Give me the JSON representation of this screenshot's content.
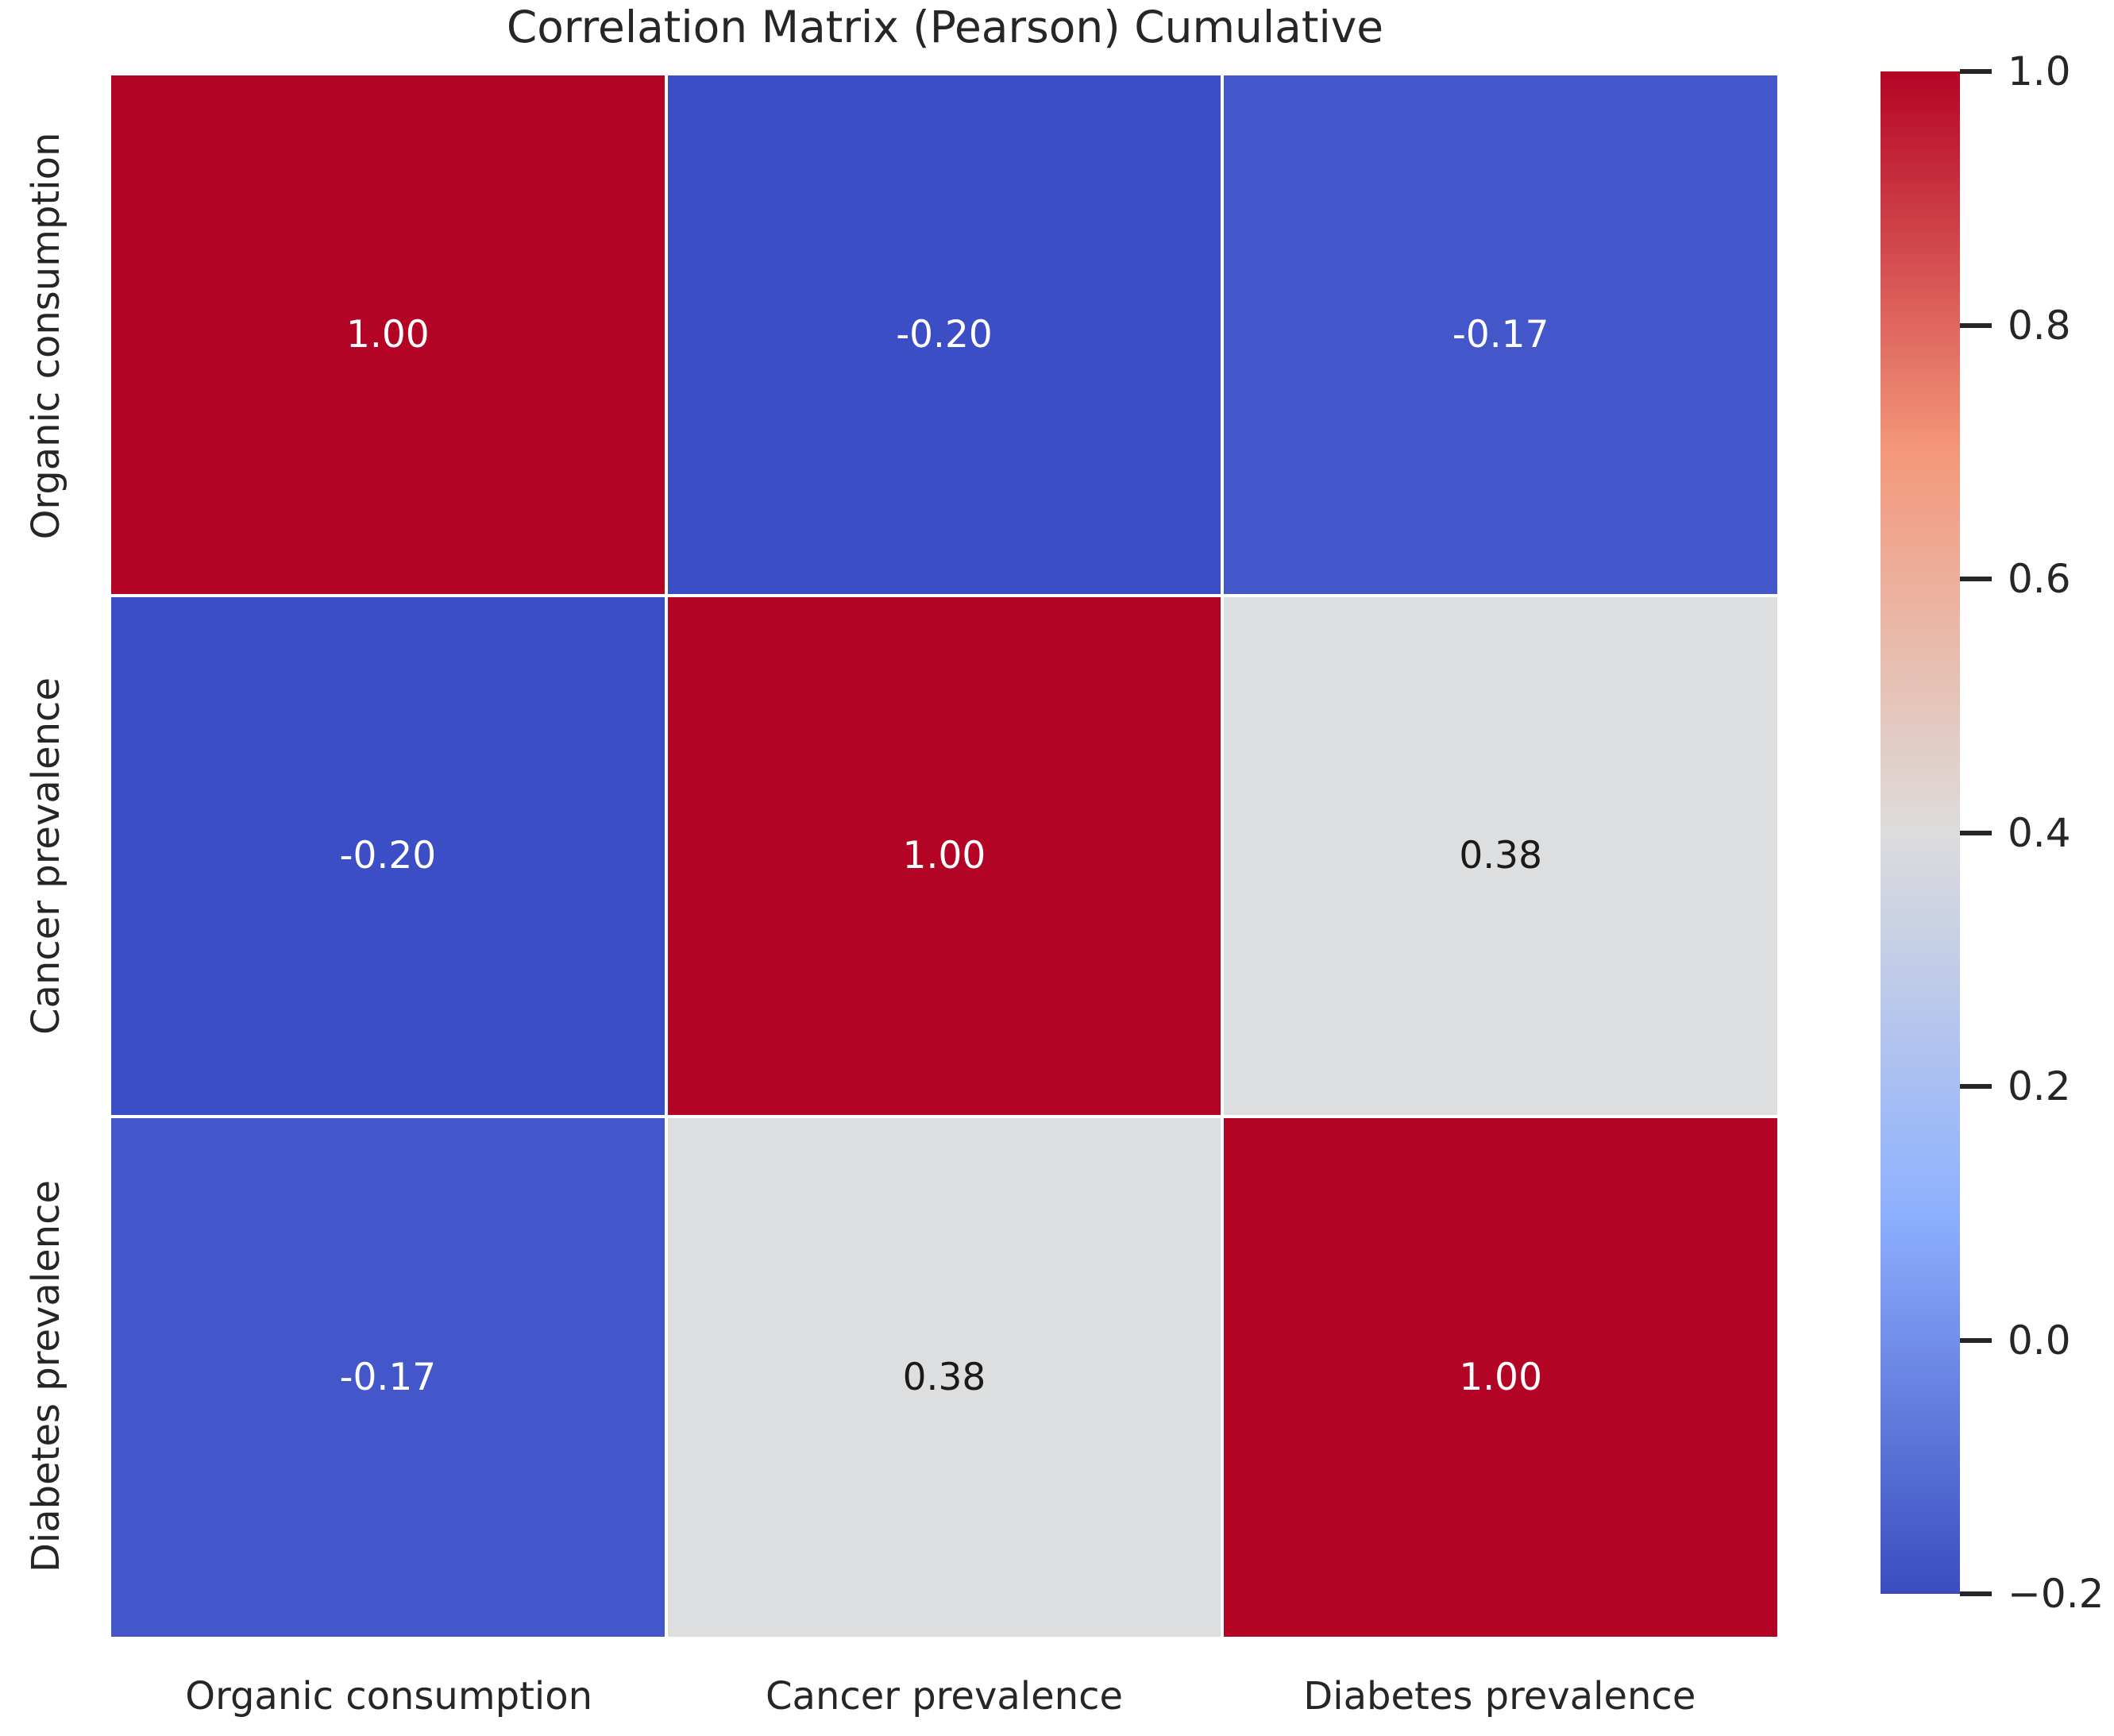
{
  "title": "Correlation Matrix (Pearson) Cumulative",
  "colors": {
    "background": "#ffffff",
    "text": "#262626",
    "grid_gap": "#ffffff"
  },
  "chart_data": {
    "type": "heatmap",
    "title": "Correlation Matrix (Pearson) Cumulative",
    "categories": [
      "Organic consumption",
      "Cancer prevalence",
      "Diabetes prevalence"
    ],
    "matrix": [
      [
        1.0,
        -0.2,
        -0.17
      ],
      [
        -0.2,
        1.0,
        0.38
      ],
      [
        -0.17,
        0.38,
        1.0
      ]
    ],
    "cell_labels": [
      [
        "1.00",
        "-0.20",
        "-0.17"
      ],
      [
        "-0.20",
        "1.00",
        "0.38"
      ],
      [
        "-0.17",
        "0.38",
        "1.00"
      ]
    ],
    "cell_colors": [
      [
        "#b40426",
        "#3c4ec5",
        "#4457ca"
      ],
      [
        "#3c4ec5",
        "#b40426",
        "#dcdee0"
      ],
      [
        "#4457ca",
        "#dcdee0",
        "#b40426"
      ]
    ],
    "cell_text_colors": [
      [
        "#ffffff",
        "#ffffff",
        "#ffffff"
      ],
      [
        "#ffffff",
        "#ffffff",
        "#1a1a1a"
      ],
      [
        "#ffffff",
        "#1a1a1a",
        "#ffffff"
      ]
    ],
    "colormap": "coolwarm",
    "vmin": -0.2,
    "vmax": 1.0,
    "grid": false,
    "legend_position": "right",
    "colorbar": {
      "gradient_stops": [
        "#b40426",
        "#f4987a",
        "#dddcdc",
        "#8db0fe",
        "#3b4cc0"
      ],
      "ticks": [
        {
          "value": 1.0,
          "label": "1.0"
        },
        {
          "value": 0.8,
          "label": "0.8"
        },
        {
          "value": 0.6,
          "label": "0.6"
        },
        {
          "value": 0.4,
          "label": "0.4"
        },
        {
          "value": 0.2,
          "label": "0.2"
        },
        {
          "value": 0.0,
          "label": "0.0"
        },
        {
          "value": -0.2,
          "label": "−0.2"
        }
      ]
    }
  }
}
